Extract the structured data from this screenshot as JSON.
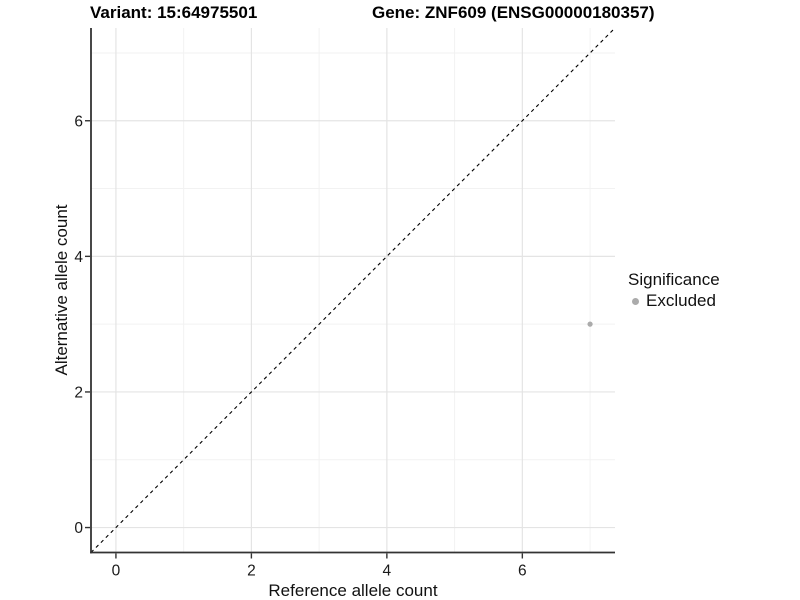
{
  "chart_data": {
    "type": "scatter",
    "title_left": "Variant: 15:64975501",
    "title_right": "Gene: ZNF609 (ENSG00000180357)",
    "xlabel": "Reference allele count",
    "ylabel": "Alternative allele count",
    "xlim": [
      -0.368,
      7.368
    ],
    "ylim": [
      -0.368,
      7.368
    ],
    "xticks": [
      0,
      2,
      4,
      6
    ],
    "yticks": [
      0,
      2,
      4,
      6
    ],
    "minor_ticks": [
      1,
      3,
      5,
      7
    ],
    "grid": true,
    "points": [
      {
        "x": 7,
        "y": 3,
        "series": "Excluded"
      }
    ],
    "identity_line": {
      "from": -0.368,
      "to": 7.368,
      "style": "dashed"
    },
    "legend": {
      "position": "right",
      "title": "Significance",
      "entries": [
        {
          "label": "Excluded",
          "color": "#ababab"
        }
      ]
    },
    "colors": {
      "point": "#ababab",
      "axis": "#333333",
      "tick_label": "#1a1a1a",
      "grid_major": "#e4e4e4",
      "grid_minor": "#f2f2f2",
      "identity_line": "#000000",
      "background": "#ffffff"
    }
  }
}
